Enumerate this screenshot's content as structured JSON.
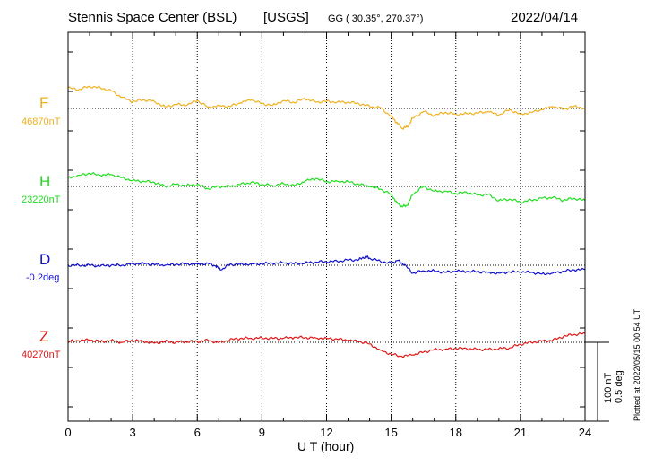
{
  "header": {
    "station": "Stennis Space Center (BSL)",
    "agency": "[USGS]",
    "coords_prefix": "GG",
    "coords": "( 30.35°, 270.37°)",
    "date": "2022/04/14"
  },
  "side_note": "Plotted at 2022/05/15 00:54 UT",
  "scale_bar": {
    "line1": "100 nT",
    "line2": "0.5 deg"
  },
  "channels": [
    {
      "letter": "F",
      "baseline": "46870nT",
      "color": "#f0b020"
    },
    {
      "letter": "H",
      "baseline": "23220nT",
      "color": "#22dd22"
    },
    {
      "letter": "D",
      "baseline": "-0.2deg",
      "color": "#1010cc"
    },
    {
      "letter": "Z",
      "baseline": "40270nT",
      "color": "#e01818"
    }
  ],
  "chart_data": {
    "type": "line",
    "xlabel": "U T (hour)",
    "xlim": [
      0,
      24
    ],
    "xticks": [
      "0",
      "3",
      "6",
      "9",
      "12",
      "15",
      "18",
      "21",
      "24"
    ],
    "grid": true,
    "units_note": "y values are deviation from each channel baseline in nT (D in deg); 100 nT or 0.5 deg per scale bar",
    "series": [
      {
        "name": "F",
        "x": [
          0,
          0.5,
          1,
          1.5,
          2,
          2.5,
          3,
          3.5,
          4,
          4.5,
          5,
          5.5,
          6,
          6.5,
          7,
          7.5,
          8,
          8.5,
          9,
          9.5,
          10,
          10.5,
          11,
          11.5,
          12,
          12.5,
          13,
          13.5,
          14,
          14.5,
          15,
          15.25,
          15.5,
          15.75,
          16,
          16.5,
          17,
          17.5,
          18,
          18.5,
          19,
          19.5,
          20,
          20.5,
          21,
          21.5,
          22,
          22.5,
          23,
          23.5,
          24
        ],
        "values": [
          52,
          48,
          56,
          52,
          45,
          28,
          17,
          22,
          18,
          4,
          10,
          8,
          20,
          3,
          7,
          5,
          14,
          22,
          12,
          8,
          20,
          15,
          25,
          16,
          18,
          16,
          16,
          12,
          5,
          2,
          -20,
          -35,
          -50,
          -47,
          -25,
          -8,
          -18,
          -10,
          -15,
          -13,
          -12,
          -8,
          -17,
          -3,
          -15,
          -10,
          -3,
          5,
          -2,
          6,
          0
        ]
      },
      {
        "name": "H",
        "x": [
          0,
          0.5,
          1,
          1.5,
          2,
          2.5,
          3,
          3.5,
          4,
          4.5,
          5,
          5.5,
          6,
          6.5,
          7,
          7.5,
          8,
          8.5,
          9,
          9.5,
          10,
          10.5,
          11,
          11.5,
          12,
          12.5,
          13,
          13.5,
          14,
          14.5,
          15,
          15.25,
          15.5,
          15.75,
          16,
          16.5,
          17,
          17.5,
          18,
          18.5,
          19,
          19.5,
          20,
          20.5,
          21,
          21.5,
          22,
          22.5,
          23,
          23.5,
          24
        ],
        "values": [
          22,
          28,
          33,
          28,
          30,
          22,
          15,
          13,
          10,
          0,
          5,
          2,
          5,
          -6,
          0,
          0,
          5,
          10,
          5,
          2,
          7,
          2,
          13,
          20,
          12,
          13,
          12,
          5,
          0,
          -7,
          -20,
          -40,
          -51,
          -48,
          -20,
          0,
          -12,
          -12,
          -18,
          -15,
          -22,
          -20,
          -36,
          -32,
          -40,
          -35,
          -30,
          -28,
          -35,
          -30,
          -36
        ]
      },
      {
        "name": "D",
        "x": [
          0,
          0.5,
          1,
          1.5,
          2,
          2.5,
          3,
          3.5,
          4,
          4.5,
          5,
          5.5,
          6,
          6.5,
          6.85,
          7.1,
          7.5,
          8,
          8.5,
          9,
          9.5,
          10,
          10.5,
          11,
          11.5,
          12,
          12.5,
          13,
          13.5,
          13.8,
          14,
          14.5,
          15,
          15.3,
          15.6,
          16,
          16.5,
          17,
          17.5,
          18,
          18.5,
          19,
          19.5,
          20,
          20.5,
          21,
          21.5,
          22,
          22.5,
          23,
          23.5,
          24
        ],
        "values": [
          0,
          0,
          0,
          -2,
          0,
          0,
          4,
          5,
          2,
          0,
          2,
          4,
          3,
          5,
          -2,
          -12,
          2,
          3,
          3,
          4,
          5,
          6,
          4,
          6,
          8,
          9,
          10,
          13,
          14,
          22,
          18,
          10,
          5,
          12,
          2,
          -20,
          -14,
          -14,
          -18,
          -15,
          -16,
          -16,
          -18,
          -20,
          -17,
          -17,
          -18,
          -22,
          -20,
          -15,
          -12,
          -11
        ]
      },
      {
        "name": "Z",
        "x": [
          0,
          0.5,
          1,
          1.5,
          2,
          2.5,
          3,
          3.5,
          4,
          4.5,
          5,
          5.5,
          6,
          6.5,
          7,
          7.5,
          8,
          8.5,
          9,
          9.5,
          10,
          10.5,
          11,
          11.5,
          12,
          12.5,
          13,
          13.5,
          14,
          14.5,
          15,
          15.5,
          16,
          16.5,
          17,
          17.5,
          18,
          18.5,
          19,
          19.5,
          20,
          20.5,
          21,
          21.5,
          22,
          22.5,
          23,
          23.5,
          24
        ],
        "values": [
          2,
          4,
          6,
          2,
          5,
          0,
          5,
          2,
          -2,
          2,
          0,
          2,
          2,
          5,
          -1,
          6,
          10,
          10,
          11,
          10,
          10,
          12,
          12,
          11,
          10,
          8,
          5,
          2,
          -4,
          -20,
          -30,
          -36,
          -32,
          -25,
          -18,
          -18,
          -15,
          -16,
          -18,
          -18,
          -16,
          -14,
          -5,
          0,
          3,
          5,
          15,
          20,
          22
        ]
      }
    ]
  }
}
